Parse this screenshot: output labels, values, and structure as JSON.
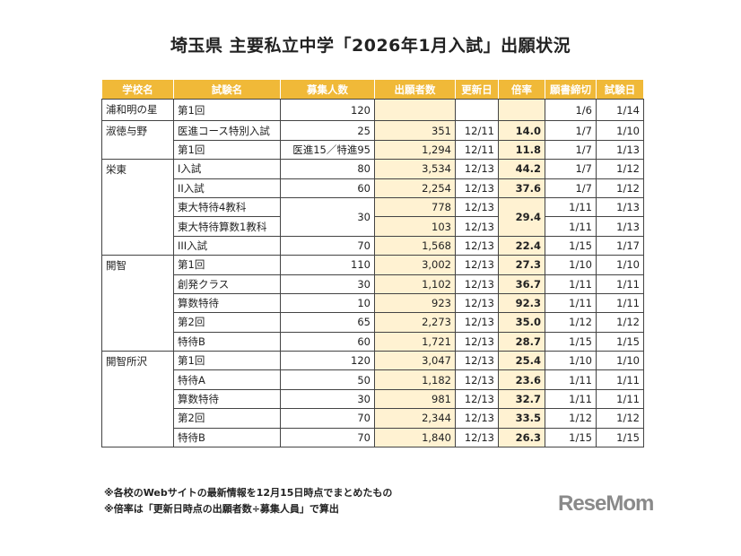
{
  "title": "埼玉県 主要私立中学「2026年1月入試」出願状況",
  "headers": [
    "学校名",
    "試験名",
    "募集人数",
    "出願者数",
    "更新日",
    "倍率",
    "願書締切",
    "試験日"
  ],
  "rows": [
    {
      "school": "浦和明の星",
      "span": 1,
      "exam": "第1回",
      "cap": "120",
      "apps": "",
      "upd": "",
      "ratio": "",
      "deadline": "1/6",
      "date": "1/14"
    },
    {
      "school": "淑徳与野",
      "span": 2,
      "exam": "医進コース特別入試",
      "cap": "25",
      "apps": "351",
      "upd": "12/11",
      "ratio": "14.0",
      "deadline": "1/7",
      "date": "1/10"
    },
    {
      "exam": "第1回",
      "cap": "医進15／特進95",
      "apps": "1,294",
      "upd": "12/11",
      "ratio": "11.8",
      "deadline": "1/7",
      "date": "1/13"
    },
    {
      "school": "栄東",
      "span": 5,
      "exam": "I入試",
      "cap": "80",
      "apps": "3,534",
      "upd": "12/13",
      "ratio": "44.2",
      "deadline": "1/7",
      "date": "1/12"
    },
    {
      "exam": "II入試",
      "cap": "60",
      "apps": "2,254",
      "upd": "12/13",
      "ratio": "37.6",
      "deadline": "1/7",
      "date": "1/12"
    },
    {
      "exam": "東大特待4教科",
      "cap": "30",
      "capspan": 2,
      "apps": "778",
      "upd": "12/13",
      "ratio": "29.4",
      "ratiospan": 2,
      "deadline": "1/11",
      "date": "1/13"
    },
    {
      "exam": "東大特待算数1教科",
      "apps": "103",
      "upd": "12/13",
      "deadline": "1/11",
      "date": "1/13",
      "merged": true
    },
    {
      "exam": "III入試",
      "cap": "70",
      "apps": "1,568",
      "upd": "12/13",
      "ratio": "22.4",
      "deadline": "1/15",
      "date": "1/17"
    },
    {
      "school": "開智",
      "span": 5,
      "exam": "第1回",
      "cap": "110",
      "apps": "3,002",
      "upd": "12/13",
      "ratio": "27.3",
      "deadline": "1/10",
      "date": "1/10"
    },
    {
      "exam": "創発クラス",
      "cap": "30",
      "apps": "1,102",
      "upd": "12/13",
      "ratio": "36.7",
      "deadline": "1/11",
      "date": "1/11"
    },
    {
      "exam": "算数特待",
      "cap": "10",
      "apps": "923",
      "upd": "12/13",
      "ratio": "92.3",
      "deadline": "1/11",
      "date": "1/11"
    },
    {
      "exam": "第2回",
      "cap": "65",
      "apps": "2,273",
      "upd": "12/13",
      "ratio": "35.0",
      "deadline": "1/12",
      "date": "1/12"
    },
    {
      "exam": "特待B",
      "cap": "60",
      "apps": "1,721",
      "upd": "12/13",
      "ratio": "28.7",
      "deadline": "1/15",
      "date": "1/15"
    },
    {
      "school": "開智所沢",
      "span": 5,
      "exam": "第1回",
      "cap": "120",
      "apps": "3,047",
      "upd": "12/13",
      "ratio": "25.4",
      "deadline": "1/10",
      "date": "1/10"
    },
    {
      "exam": "特待A",
      "cap": "50",
      "apps": "1,182",
      "upd": "12/13",
      "ratio": "23.6",
      "deadline": "1/11",
      "date": "1/11"
    },
    {
      "exam": "算数特待",
      "cap": "30",
      "apps": "981",
      "upd": "12/13",
      "ratio": "32.7",
      "deadline": "1/11",
      "date": "1/11"
    },
    {
      "exam": "第2回",
      "cap": "70",
      "apps": "2,344",
      "upd": "12/13",
      "ratio": "33.5",
      "deadline": "1/12",
      "date": "1/12"
    },
    {
      "exam": "特待B",
      "cap": "70",
      "apps": "1,840",
      "upd": "12/13",
      "ratio": "26.3",
      "deadline": "1/15",
      "date": "1/15"
    }
  ],
  "notes": [
    "※各校のWebサイトの最新情報を12月15日時点でまとめたもの",
    "※倍率は「更新日時点の出願者数÷募集人員」で算出"
  ],
  "logo": "ReseMom",
  "colors": {
    "header": "#f0b938",
    "highlight": "#fff2d2",
    "logo": "#8a8a8a"
  }
}
